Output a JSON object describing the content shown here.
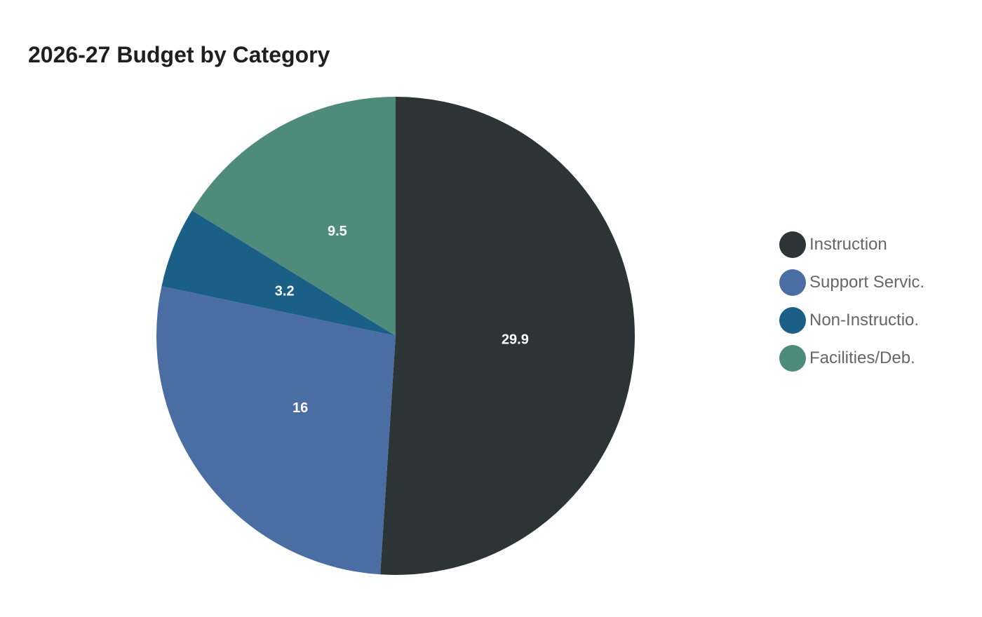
{
  "chart_data": {
    "type": "pie",
    "title": "2026-27 Budget by Category",
    "categories": [
      "Instruction",
      "Support Servic.",
      "Non-Instructio.",
      "Facilities/Deb."
    ],
    "values": [
      29.9,
      16,
      3.2,
      9.5
    ],
    "colors": [
      "#2d3436",
      "#4a6da3",
      "#1a5f86",
      "#4e8b7b"
    ],
    "value_labels": [
      "29.9",
      "16",
      "3.2",
      "9.5"
    ],
    "start_angle": "top",
    "direction": "clockwise",
    "legend_position": "right"
  },
  "legend": {
    "items": [
      {
        "label": "Instruction",
        "color": "#2d3436"
      },
      {
        "label": "Support Servic.",
        "color": "#4a6da3"
      },
      {
        "label": "Non-Instructio.",
        "color": "#1a5f86"
      },
      {
        "label": "Facilities/Deb.",
        "color": "#4e8b7b"
      }
    ]
  }
}
